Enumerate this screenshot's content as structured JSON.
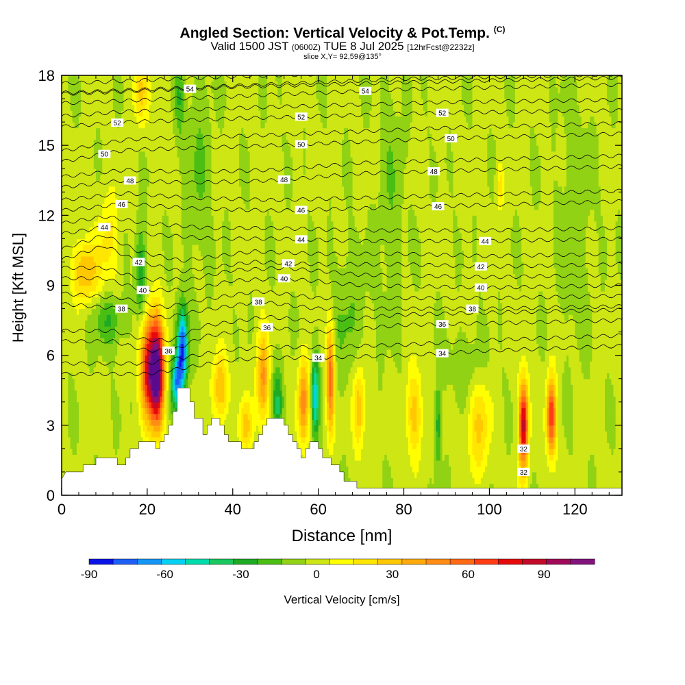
{
  "title": {
    "main": "Angled Section: Vertical Velocity & Pot.Temp.",
    "copyright": "(C)",
    "valid_prefix": "Valid 1500 JST",
    "valid_utc": "(0600Z)",
    "valid_date": "TUE 8 Jul 2025",
    "forecast": "[12hrFcst@2232z]",
    "slice": "slice X,Y= 92,59@135°"
  },
  "colors": {
    "scale": [
      "#0a14e6",
      "#1e5ff5",
      "#1496f5",
      "#05d2f5",
      "#00dcaa",
      "#19c85f",
      "#1eaa23",
      "#4bbe14",
      "#91d214",
      "#cde614",
      "#ffff00",
      "#ffe600",
      "#ffc800",
      "#ffaa0a",
      "#ff8c14",
      "#ff6914",
      "#ff3c14",
      "#e60a0a",
      "#c30a28",
      "#a00a5a",
      "#82147d",
      "#5a0a8c"
    ],
    "terrain": "#ffffff"
  },
  "chart_data": {
    "type": "heatmap",
    "xlabel": "Distance [nm]",
    "ylabel": "Height [Kft MSL]",
    "xlim": [
      0,
      131
    ],
    "ylim": [
      0,
      18
    ],
    "xticks": [
      0,
      20,
      40,
      60,
      80,
      100,
      120
    ],
    "yticks": [
      0,
      3,
      6,
      9,
      12,
      15,
      18
    ],
    "colorbar": {
      "label": "Vertical Velocity [cm/s]",
      "min": -90,
      "max": 110,
      "step": 10,
      "tick_labels": [
        -90,
        -60,
        -30,
        0,
        30,
        60,
        90
      ]
    },
    "terrain_kft": [
      [
        0,
        0.7
      ],
      [
        1,
        1.0
      ],
      [
        5,
        1.0
      ],
      [
        5,
        1.3
      ],
      [
        8,
        1.3
      ],
      [
        8,
        1.6
      ],
      [
        13,
        1.6
      ],
      [
        13,
        1.3
      ],
      [
        15,
        1.3
      ],
      [
        15,
        1.6
      ],
      [
        16,
        1.6
      ],
      [
        16,
        2.0
      ],
      [
        18,
        2.0
      ],
      [
        18,
        2.3
      ],
      [
        22,
        2.3
      ],
      [
        22,
        2.0
      ],
      [
        23,
        2.0
      ],
      [
        23,
        2.3
      ],
      [
        24,
        2.3
      ],
      [
        24,
        2.6
      ],
      [
        25,
        2.6
      ],
      [
        25,
        3.0
      ],
      [
        26,
        3.0
      ],
      [
        26,
        3.6
      ],
      [
        27,
        3.6
      ],
      [
        27,
        4.6
      ],
      [
        30,
        4.6
      ],
      [
        30,
        4.0
      ],
      [
        31,
        4.0
      ],
      [
        31,
        3.3
      ],
      [
        33,
        3.3
      ],
      [
        33,
        2.6
      ],
      [
        34,
        2.6
      ],
      [
        34,
        3.0
      ],
      [
        35,
        3.0
      ],
      [
        35,
        3.3
      ],
      [
        37,
        3.3
      ],
      [
        37,
        3.0
      ],
      [
        38,
        3.0
      ],
      [
        38,
        2.6
      ],
      [
        39,
        2.6
      ],
      [
        39,
        2.3
      ],
      [
        42,
        2.3
      ],
      [
        42,
        2.0
      ],
      [
        45,
        2.0
      ],
      [
        45,
        2.3
      ],
      [
        46,
        2.3
      ],
      [
        46,
        2.6
      ],
      [
        47,
        2.6
      ],
      [
        47,
        3.0
      ],
      [
        48,
        3.0
      ],
      [
        48,
        3.3
      ],
      [
        52,
        3.3
      ],
      [
        52,
        3.0
      ],
      [
        53,
        3.0
      ],
      [
        53,
        2.6
      ],
      [
        54,
        2.6
      ],
      [
        54,
        2.3
      ],
      [
        55,
        2.3
      ],
      [
        55,
        2.0
      ],
      [
        56,
        2.0
      ],
      [
        56,
        1.6
      ],
      [
        57,
        1.6
      ],
      [
        57,
        2.0
      ],
      [
        58,
        2.0
      ],
      [
        58,
        2.3
      ],
      [
        60,
        2.3
      ],
      [
        60,
        2.0
      ],
      [
        61,
        2.0
      ],
      [
        61,
        1.6
      ],
      [
        63,
        1.6
      ],
      [
        63,
        1.3
      ],
      [
        65,
        1.3
      ],
      [
        65,
        1.0
      ],
      [
        66,
        1.0
      ],
      [
        66,
        0.6
      ],
      [
        69,
        0.6
      ],
      [
        69,
        0.3
      ],
      [
        131,
        0.3
      ]
    ],
    "updrafts": [
      {
        "x": 20.5,
        "y": 5.5,
        "sx": 1.4,
        "sy": 1.5,
        "w": 95
      },
      {
        "x": 22.5,
        "y": 5.2,
        "sx": 1.1,
        "sy": 1.6,
        "w": 105
      },
      {
        "x": 108.0,
        "y": 3.0,
        "sx": 0.8,
        "sy": 1.4,
        "w": 95
      },
      {
        "x": 114.5,
        "y": 3.4,
        "sx": 0.8,
        "sy": 1.2,
        "w": 80
      },
      {
        "x": 62.8,
        "y": 5.0,
        "sx": 0.7,
        "sy": 1.6,
        "w": 65
      },
      {
        "x": 56.5,
        "y": 4.0,
        "sx": 0.9,
        "sy": 1.3,
        "w": 55
      },
      {
        "x": 47.0,
        "y": 5.0,
        "sx": 1.0,
        "sy": 1.4,
        "w": 50
      },
      {
        "x": 37.0,
        "y": 4.6,
        "sx": 1.3,
        "sy": 1.0,
        "w": 40
      },
      {
        "x": 69.5,
        "y": 3.8,
        "sx": 1.0,
        "sy": 1.3,
        "w": 38
      },
      {
        "x": 82.5,
        "y": 3.5,
        "sx": 1.3,
        "sy": 1.3,
        "w": 35
      },
      {
        "x": 97.5,
        "y": 3.0,
        "sx": 1.8,
        "sy": 1.5,
        "w": 30
      },
      {
        "x": 5.5,
        "y": 9.6,
        "sx": 2.2,
        "sy": 0.9,
        "w": 40
      },
      {
        "x": 18.5,
        "y": 17.3,
        "sx": 1.2,
        "sy": 1.0,
        "w": 30
      },
      {
        "x": 43.0,
        "y": 3.0,
        "sx": 1.2,
        "sy": 0.8,
        "w": 30
      },
      {
        "x": 11.0,
        "y": 11.0,
        "sx": 1.8,
        "sy": 1.5,
        "w": 20
      },
      {
        "x": 102.5,
        "y": 13.2,
        "sx": 0.6,
        "sy": 0.7,
        "w": 22
      }
    ],
    "downdrafts": [
      {
        "x": 28.2,
        "y": 6.3,
        "sx": 0.9,
        "sy": 1.2,
        "w": -85
      },
      {
        "x": 26.8,
        "y": 4.8,
        "sx": 0.9,
        "sy": 0.8,
        "w": -60
      },
      {
        "x": 59.3,
        "y": 4.3,
        "sx": 0.6,
        "sy": 1.2,
        "w": -55
      },
      {
        "x": 18.5,
        "y": 9.5,
        "sx": 0.8,
        "sy": 1.3,
        "w": -35
      },
      {
        "x": 50.5,
        "y": 4.0,
        "sx": 0.9,
        "sy": 1.1,
        "w": -32
      },
      {
        "x": 88.0,
        "y": 3.0,
        "sx": 0.5,
        "sy": 1.3,
        "w": -30
      },
      {
        "x": 11.0,
        "y": 7.5,
        "sx": 2.5,
        "sy": 0.8,
        "w": -22
      },
      {
        "x": 95.0,
        "y": 5.5,
        "sx": 3.0,
        "sy": 1.0,
        "w": -12
      },
      {
        "x": 67.0,
        "y": 7.5,
        "sx": 3.0,
        "sy": 2.0,
        "w": -12
      },
      {
        "x": 32.0,
        "y": 14.0,
        "sx": 2.0,
        "sy": 3.0,
        "w": -12
      },
      {
        "x": 77.0,
        "y": 13.0,
        "sx": 2.0,
        "sy": 3.5,
        "w": -10
      },
      {
        "x": 120.0,
        "y": 12.0,
        "sx": 2.5,
        "sy": 3.5,
        "w": -10
      },
      {
        "x": 27.5,
        "y": 17.0,
        "sx": 0.8,
        "sy": 1.2,
        "w": -20
      }
    ],
    "theta_contours": [
      {
        "value": 54,
        "label_x": [
          30
        ],
        "kft": [
          [
            0,
            17.2
          ],
          [
            40,
            17.5
          ],
          [
            80,
            17.7
          ],
          [
            131,
            17.9
          ]
        ]
      },
      {
        "value": 54,
        "label_x": [
          71
        ],
        "kft": [
          [
            0,
            16.8
          ],
          [
            40,
            17.1
          ],
          [
            80,
            17.4
          ],
          [
            131,
            17.6
          ]
        ]
      },
      {
        "value": 52,
        "label_x": [
          13,
          56,
          89
        ],
        "kft": [
          [
            0,
            15.8
          ],
          [
            15,
            16.0
          ],
          [
            50,
            16.2
          ],
          [
            90,
            16.4
          ],
          [
            131,
            16.5
          ]
        ]
      },
      {
        "value": 50,
        "label_x": [
          10,
          56,
          91
        ],
        "kft": [
          [
            0,
            14.3
          ],
          [
            15,
            14.8
          ],
          [
            50,
            15.0
          ],
          [
            90,
            15.3
          ],
          [
            131,
            15.5
          ]
        ]
      },
      {
        "value": 48,
        "label_x": [
          16,
          52,
          87
        ],
        "kft": [
          [
            0,
            13.2
          ],
          [
            15,
            13.5
          ],
          [
            30,
            13.4
          ],
          [
            50,
            13.5
          ],
          [
            70,
            13.8
          ],
          [
            90,
            13.9
          ],
          [
            131,
            14.1
          ]
        ]
      },
      {
        "value": 46,
        "label_x": [
          14,
          56,
          88
        ],
        "kft": [
          [
            0,
            12.2
          ],
          [
            15,
            12.5
          ],
          [
            30,
            12.3
          ],
          [
            50,
            12.2
          ],
          [
            70,
            12.3
          ],
          [
            90,
            12.4
          ],
          [
            131,
            12.6
          ]
        ]
      },
      {
        "value": 44,
        "label_x": [
          10,
          56,
          99
        ],
        "kft": [
          [
            0,
            11.2
          ],
          [
            10,
            11.5
          ],
          [
            20,
            11.2
          ],
          [
            35,
            11.0
          ],
          [
            50,
            11.0
          ],
          [
            70,
            10.9
          ],
          [
            100,
            10.9
          ],
          [
            131,
            11.0
          ]
        ]
      },
      {
        "value": 42,
        "label_x": [
          18,
          53,
          98
        ],
        "kft": [
          [
            0,
            10.1
          ],
          [
            10,
            10.7
          ],
          [
            18,
            10.0
          ],
          [
            28,
            9.6
          ],
          [
            45,
            10.0
          ],
          [
            60,
            9.9
          ],
          [
            80,
            9.9
          ],
          [
            100,
            9.8
          ],
          [
            131,
            9.9
          ]
        ]
      },
      {
        "value": 40,
        "label_x": [
          19,
          52,
          98
        ],
        "kft": [
          [
            0,
            9.3
          ],
          [
            10,
            9.3
          ],
          [
            19,
            8.8
          ],
          [
            30,
            8.8
          ],
          [
            40,
            9.2
          ],
          [
            52,
            9.3
          ],
          [
            70,
            9.0
          ],
          [
            100,
            8.9
          ],
          [
            131,
            9.0
          ]
        ]
      },
      {
        "value": 38,
        "label_x": [
          14,
          46,
          96
        ],
        "kft": [
          [
            0,
            8.2
          ],
          [
            14,
            8.0
          ],
          [
            24,
            7.6
          ],
          [
            32,
            7.9
          ],
          [
            46,
            8.3
          ],
          [
            60,
            8.0
          ],
          [
            80,
            8.0
          ],
          [
            100,
            8.0
          ],
          [
            131,
            8.1
          ]
        ]
      },
      {
        "value": 36,
        "label_x": [
          25,
          48,
          89
        ],
        "kft": [
          [
            0,
            6.6
          ],
          [
            12,
            6.6
          ],
          [
            20,
            6.2
          ],
          [
            26,
            6.2
          ],
          [
            33,
            6.8
          ],
          [
            48,
            7.2
          ],
          [
            60,
            7.0
          ],
          [
            80,
            7.3
          ],
          [
            131,
            7.5
          ]
        ]
      },
      {
        "value": 34,
        "label_x": [
          60,
          89
        ],
        "kft": [
          [
            0,
            5.2
          ],
          [
            20,
            5.2
          ],
          [
            40,
            5.8
          ],
          [
            50,
            5.9
          ],
          [
            60,
            5.9
          ],
          [
            80,
            6.0
          ],
          [
            100,
            6.2
          ],
          [
            131,
            6.4
          ]
        ]
      }
    ],
    "contour_32_labels": [
      {
        "text": "32",
        "x": 108.0,
        "y": 2.0
      },
      {
        "text": "32",
        "x": 108.0,
        "y": 1.0
      }
    ]
  }
}
